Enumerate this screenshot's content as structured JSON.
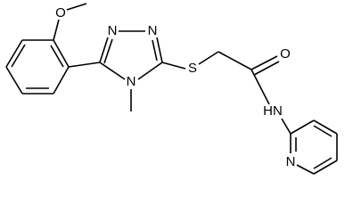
{
  "atoms": [
    {
      "label": "O"
    },
    {
      "label": "N"
    },
    {
      "label": "N"
    },
    {
      "label": "N"
    },
    {
      "label": "S"
    },
    {
      "label": "O"
    },
    {
      "label": "HN"
    },
    {
      "label": "N"
    }
  ]
}
